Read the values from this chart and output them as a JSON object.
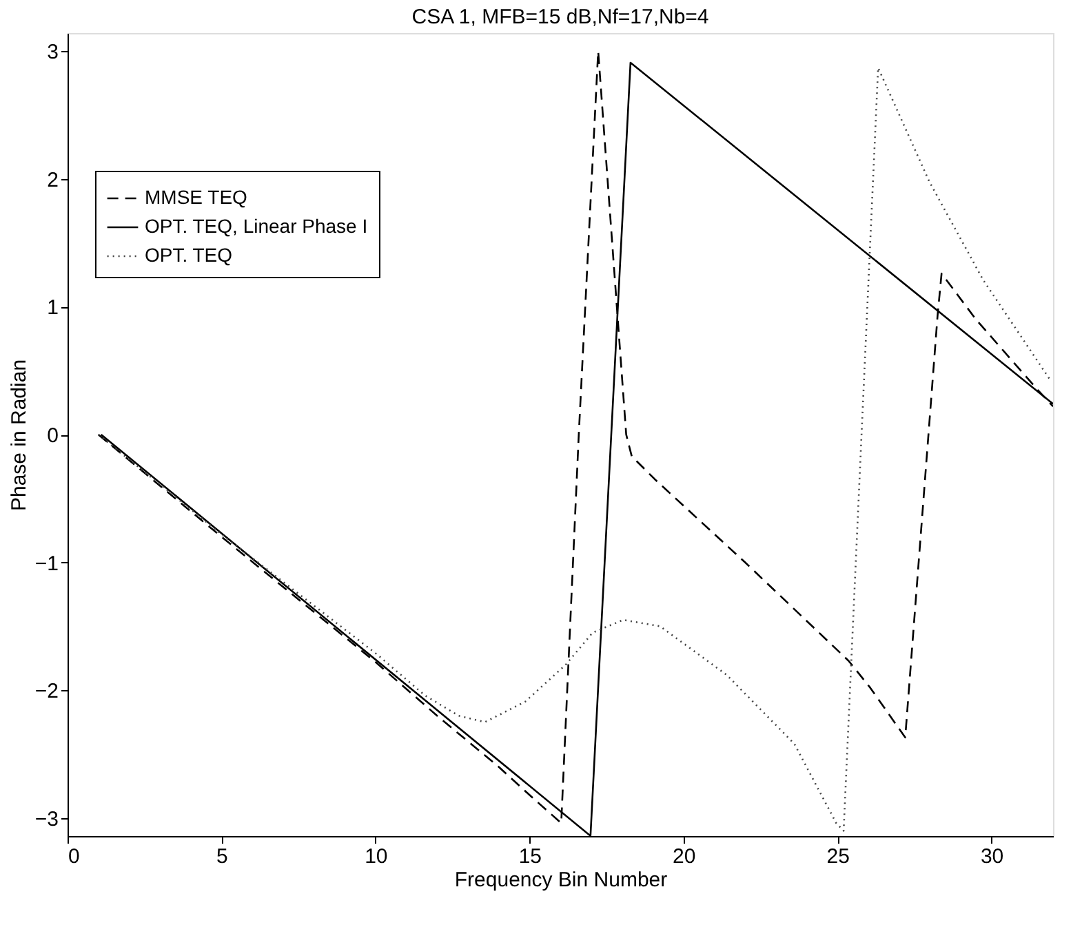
{
  "chart_data": {
    "type": "line",
    "title": "CSA 1, MFB=15 dB,Nf=17,Nb=4",
    "xlabel": "Frequency Bin Number",
    "ylabel": "Phase in Radian",
    "xlim": [
      0,
      32
    ],
    "xticks": [
      0,
      5,
      10,
      15,
      20,
      25,
      30
    ],
    "ylim": [
      -3.1416,
      3.1416
    ],
    "yticks": [
      -3,
      -2,
      -1,
      0,
      1,
      2,
      3
    ],
    "grid": false,
    "legend": "top left",
    "marker": "none",
    "series": [
      {
        "name": "MMSE TEQ",
        "color": "#000000",
        "line_style": "dashed",
        "x": [
          1,
          5,
          10,
          12,
          14,
          15,
          16.03,
          16.6,
          17.23,
          18.14,
          18.32,
          19.07,
          22,
          25.36,
          26.06,
          27.2,
          28.25,
          28.38,
          29.5,
          31.5,
          32
        ],
        "values": [
          0,
          -0.8,
          -1.78,
          -2.2,
          -2.6,
          -2.82,
          -3.04,
          0,
          3.0,
          0.0,
          -0.17,
          -0.35,
          -1.0,
          -1.77,
          -1.98,
          -2.37,
          0.93,
          1.26,
          0.9,
          0.35,
          0.22
        ]
      },
      {
        "name": "OPT. TEQ, Linear Phase I",
        "color": "#000000",
        "line_style": "solid",
        "x": [
          1.09,
          16.98,
          18.28,
          32
        ],
        "values": [
          0,
          -3.14,
          2.91,
          0.24
        ]
      },
      {
        "name": "OPT. TEQ",
        "color": "#444444",
        "line_style": "dotted",
        "x": [
          1,
          5,
          10.05,
          11.6,
          12.7,
          13.55,
          14.86,
          16.18,
          17.05,
          18.04,
          19.24,
          21.4,
          23.6,
          24.96,
          25.2,
          26.32,
          27.98,
          29.73,
          31.9
        ],
        "values": [
          0,
          -0.78,
          -1.72,
          -2.04,
          -2.2,
          -2.25,
          -2.09,
          -1.8,
          -1.55,
          -1.45,
          -1.5,
          -1.88,
          -2.42,
          -3.04,
          -3.1,
          2.87,
          1.98,
          1.21,
          0.43
        ]
      }
    ]
  }
}
